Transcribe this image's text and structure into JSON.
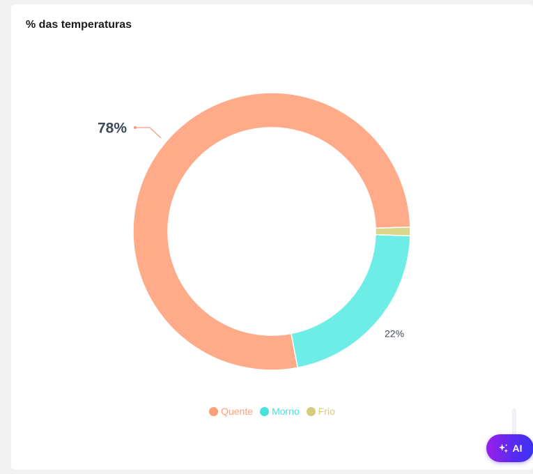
{
  "card": {
    "title": "% das temperaturas"
  },
  "chart_data": {
    "type": "pie",
    "variant": "donut",
    "title": "% das temperaturas",
    "categories": [
      "Quente",
      "Morno",
      "Frio"
    ],
    "values": [
      77.5,
      21.5,
      1.0
    ],
    "colors": [
      "#ffab8a",
      "#6eede7",
      "#dad68a"
    ],
    "data_labels": [
      "78%",
      "22%",
      ""
    ],
    "legend_position": "bottom"
  },
  "legend": {
    "items": [
      {
        "label": "Quente",
        "color": "#ff9f7a"
      },
      {
        "label": "Morno",
        "color": "#45e3dc"
      },
      {
        "label": "Frio",
        "color": "#d5cd7c"
      }
    ]
  },
  "ai_button": {
    "label": "AI",
    "icon": "sparkles-icon"
  }
}
